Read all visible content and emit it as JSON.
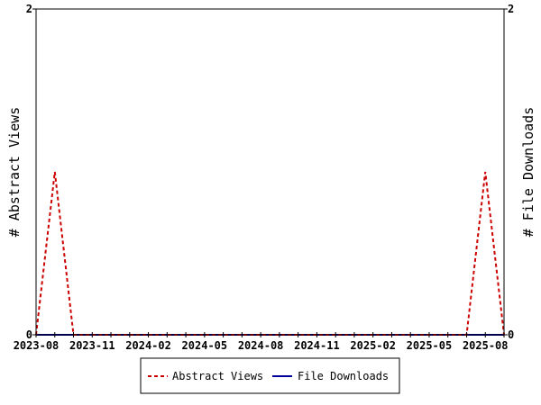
{
  "chart_data": {
    "type": "line",
    "x": [
      "2023-08",
      "2023-09",
      "2023-10",
      "2023-11",
      "2023-12",
      "2024-01",
      "2024-02",
      "2024-03",
      "2024-04",
      "2024-05",
      "2024-06",
      "2024-07",
      "2024-08",
      "2024-09",
      "2024-10",
      "2024-11",
      "2024-12",
      "2025-01",
      "2025-02",
      "2025-03",
      "2025-04",
      "2025-05",
      "2025-06",
      "2025-07",
      "2025-08",
      "2025-09"
    ],
    "x_tick_labels": [
      "2023-08",
      "2023-11",
      "2024-02",
      "2024-05",
      "2024-08",
      "2024-11",
      "2025-02",
      "2025-05",
      "2025-08"
    ],
    "series": [
      {
        "name": "Abstract Views",
        "axis": "left",
        "color": "#cc0000",
        "style": "dashed",
        "values": [
          0,
          1,
          0,
          0,
          0,
          0,
          0,
          0,
          0,
          0,
          0,
          0,
          0,
          0,
          0,
          0,
          0,
          0,
          0,
          0,
          0,
          0,
          0,
          0,
          1,
          0
        ]
      },
      {
        "name": "File Downloads",
        "axis": "right",
        "color": "#000099",
        "style": "solid",
        "values": [
          0,
          0,
          0,
          0,
          0,
          0,
          0,
          0,
          0,
          0,
          0,
          0,
          0,
          0,
          0,
          0,
          0,
          0,
          0,
          0,
          0,
          0,
          0,
          0,
          0,
          0
        ]
      }
    ],
    "ylabel_left": "# Abstract Views",
    "ylabel_right": "# File Downloads",
    "ylim_left": [
      0,
      2
    ],
    "ylim_right": [
      0,
      2
    ],
    "y_tick_labels_left": [
      "0",
      "2"
    ],
    "y_tick_labels_right": [
      "0",
      "2"
    ],
    "grid": false,
    "legend_position": "bottom-center"
  }
}
